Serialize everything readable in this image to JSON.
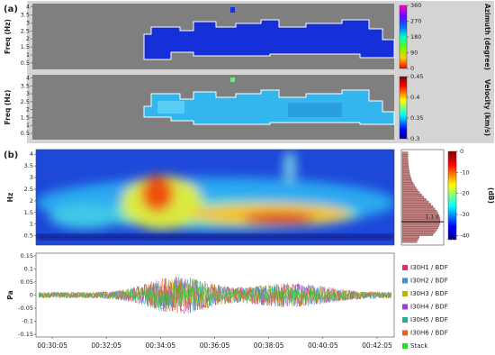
{
  "chart_data": [
    {
      "type": "heatmap",
      "panel_label": "(a)",
      "ylabel": "Freq (Hz)",
      "ylim": [
        0.1,
        4.2
      ],
      "yticks": [
        0.5,
        1,
        1.5,
        2,
        2.5,
        3,
        3.5,
        4
      ],
      "colorbar": {
        "label": "Azimuth (degree)",
        "clim": [
          0,
          360
        ],
        "ticks": [
          0,
          90,
          180,
          270,
          360
        ]
      }
    },
    {
      "type": "heatmap",
      "ylabel": "Freq (Hz)",
      "ylim": [
        0.1,
        4.2
      ],
      "yticks": [
        0.5,
        1,
        1.5,
        2,
        2.5,
        3,
        3.5,
        4
      ],
      "colorbar": {
        "label": "Velocity (km/s)",
        "clim": [
          0.3,
          0.45
        ],
        "ticks": [
          0.3,
          0.35,
          0.4,
          0.45
        ]
      }
    },
    {
      "type": "spectrogram",
      "panel_label": "(b)",
      "ylabel": "Hz",
      "ylim": [
        0.1,
        4.2
      ],
      "yticks": [
        0.5,
        1,
        1.5,
        2,
        2.5,
        3,
        3.5,
        4
      ],
      "annotation": "1.1 s",
      "colorbar": {
        "label": "(dB)",
        "clim": [
          -42,
          0
        ],
        "ticks": [
          0,
          -10,
          -20,
          -30,
          -40
        ]
      }
    },
    {
      "type": "line",
      "ylabel": "Pa",
      "ylim": [
        -0.16,
        0.16
      ],
      "yticks": [
        0.15,
        0.1,
        0.05,
        0,
        -0.05,
        -0.1,
        -0.15
      ],
      "xlim": [
        1769,
        2563
      ],
      "xticks": [
        {
          "value": 1805,
          "label": "00:30:05"
        },
        {
          "value": 1925,
          "label": "00:32:05"
        },
        {
          "value": 2045,
          "label": "00:34:05"
        },
        {
          "value": 2165,
          "label": "00:36:05"
        },
        {
          "value": 2285,
          "label": "00:38:05"
        },
        {
          "value": 2405,
          "label": "00:40:05"
        },
        {
          "value": 2525,
          "label": "00:42:05"
        }
      ],
      "series": [
        {
          "name": "I30H1 / BDF",
          "color": "#d6336c"
        },
        {
          "name": "I30H2 / BDF",
          "color": "#3a8fd9"
        },
        {
          "name": "I30H3 / BDF",
          "color": "#b5b800"
        },
        {
          "name": "I30H4 / BDF",
          "color": "#9b3fd0"
        },
        {
          "name": "I30H5 / BDF",
          "color": "#27b08a"
        },
        {
          "name": "I30H6 / BDF",
          "color": "#e8601c"
        },
        {
          "name": "Stack",
          "color": "#22e022"
        }
      ]
    }
  ]
}
